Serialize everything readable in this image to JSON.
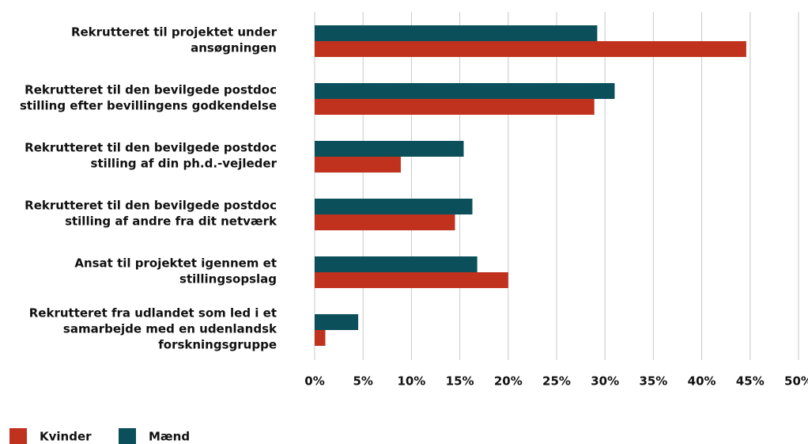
{
  "chart_data": {
    "type": "hbar",
    "categories": [
      [
        "Rekrutteret til projektet under",
        "ansøgningen"
      ],
      [
        "Rekrutteret til den bevilgede postdoc",
        "stilling efter bevillingens godkendelse"
      ],
      [
        "Rekrutteret til den bevilgede postdoc",
        "stilling af din ph.d.-vejleder"
      ],
      [
        "Rekrutteret til den bevilgede postdoc",
        "stilling af andre fra dit netværk"
      ],
      [
        "Ansat til projektet igennem et",
        "stillingsopslag"
      ],
      [
        "Rekrutteret fra udlandet som led i et",
        "samarbejde med en udenlandsk",
        "forskningsgruppe"
      ]
    ],
    "series": [
      {
        "name": "Kvinder",
        "color": "#c0321e",
        "values": [
          44.6,
          28.9,
          8.9,
          14.5,
          20.0,
          1.1
        ]
      },
      {
        "name": "Mænd",
        "color": "#0b4f5b",
        "values": [
          29.2,
          31.0,
          15.4,
          16.3,
          16.8,
          4.5
        ]
      }
    ],
    "xlim": [
      0,
      50
    ],
    "xticks": [
      {
        "value": 0,
        "label": "0%"
      },
      {
        "value": 5,
        "label": "5%"
      },
      {
        "value": 10,
        "label": "10%"
      },
      {
        "value": 15,
        "label": "15%"
      },
      {
        "value": 20,
        "label": "20%"
      },
      {
        "value": 25,
        "label": "25%"
      },
      {
        "value": 30,
        "label": "30%"
      },
      {
        "value": 35,
        "label": "35%"
      },
      {
        "value": 40,
        "label": "40%"
      },
      {
        "value": 45,
        "label": "45%"
      },
      {
        "value": 50,
        "label": "50%"
      }
    ],
    "grid": true,
    "legend": "bottom-left"
  }
}
